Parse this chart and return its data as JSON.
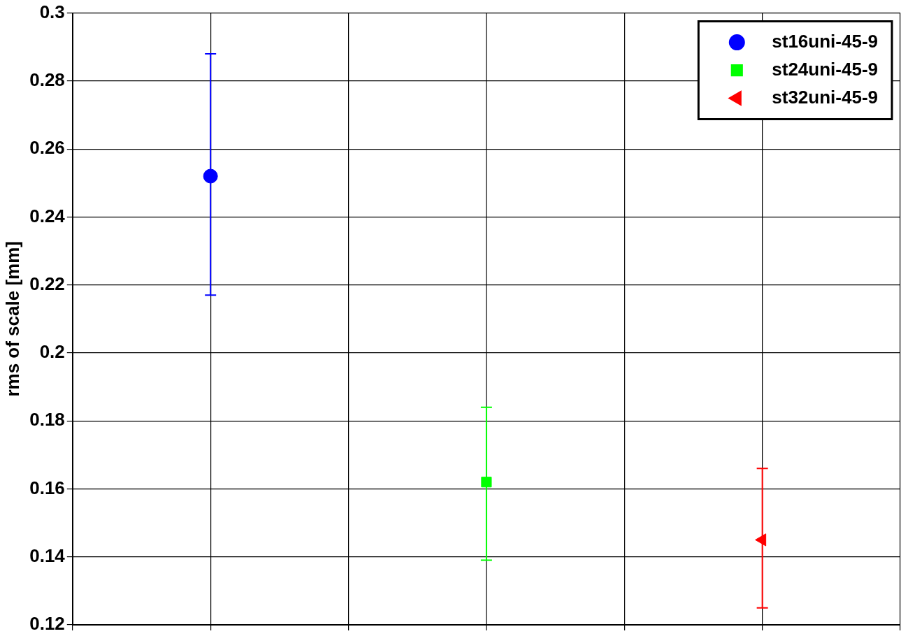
{
  "chart_data": {
    "type": "scatter",
    "ylabel": "rms of scale [mm]",
    "categories": [
      null,
      null,
      null,
      null,
      null,
      null,
      null
    ],
    "ylim": [
      0.12,
      0.3
    ],
    "yticks": [
      0.12,
      0.14,
      0.16,
      0.18,
      0.2,
      0.22,
      0.24,
      0.26,
      0.28,
      0.3
    ],
    "tick_labels": "y",
    "grid": true,
    "legend": "top right",
    "series": [
      {
        "name": "st16uni-45-9",
        "color": "#0000ff",
        "marker": "circle",
        "values": [
          null,
          0.252,
          null,
          null,
          null,
          null,
          null
        ],
        "errors": [
          null,
          [
            0.217,
            0.288
          ],
          null,
          null,
          null,
          null,
          null
        ]
      },
      {
        "name": "st24uni-45-9",
        "color": "#00ff00",
        "marker": "square",
        "values": [
          null,
          null,
          null,
          0.162,
          null,
          null,
          null
        ],
        "errors": [
          null,
          null,
          null,
          [
            0.139,
            0.184
          ],
          null,
          null,
          null
        ]
      },
      {
        "name": "st32uni-45-9",
        "color": "#ff0000",
        "marker": "triangle",
        "values": [
          null,
          null,
          null,
          null,
          null,
          0.145,
          null
        ],
        "errors": [
          null,
          null,
          null,
          null,
          null,
          [
            0.125,
            0.166
          ],
          null
        ]
      }
    ]
  }
}
